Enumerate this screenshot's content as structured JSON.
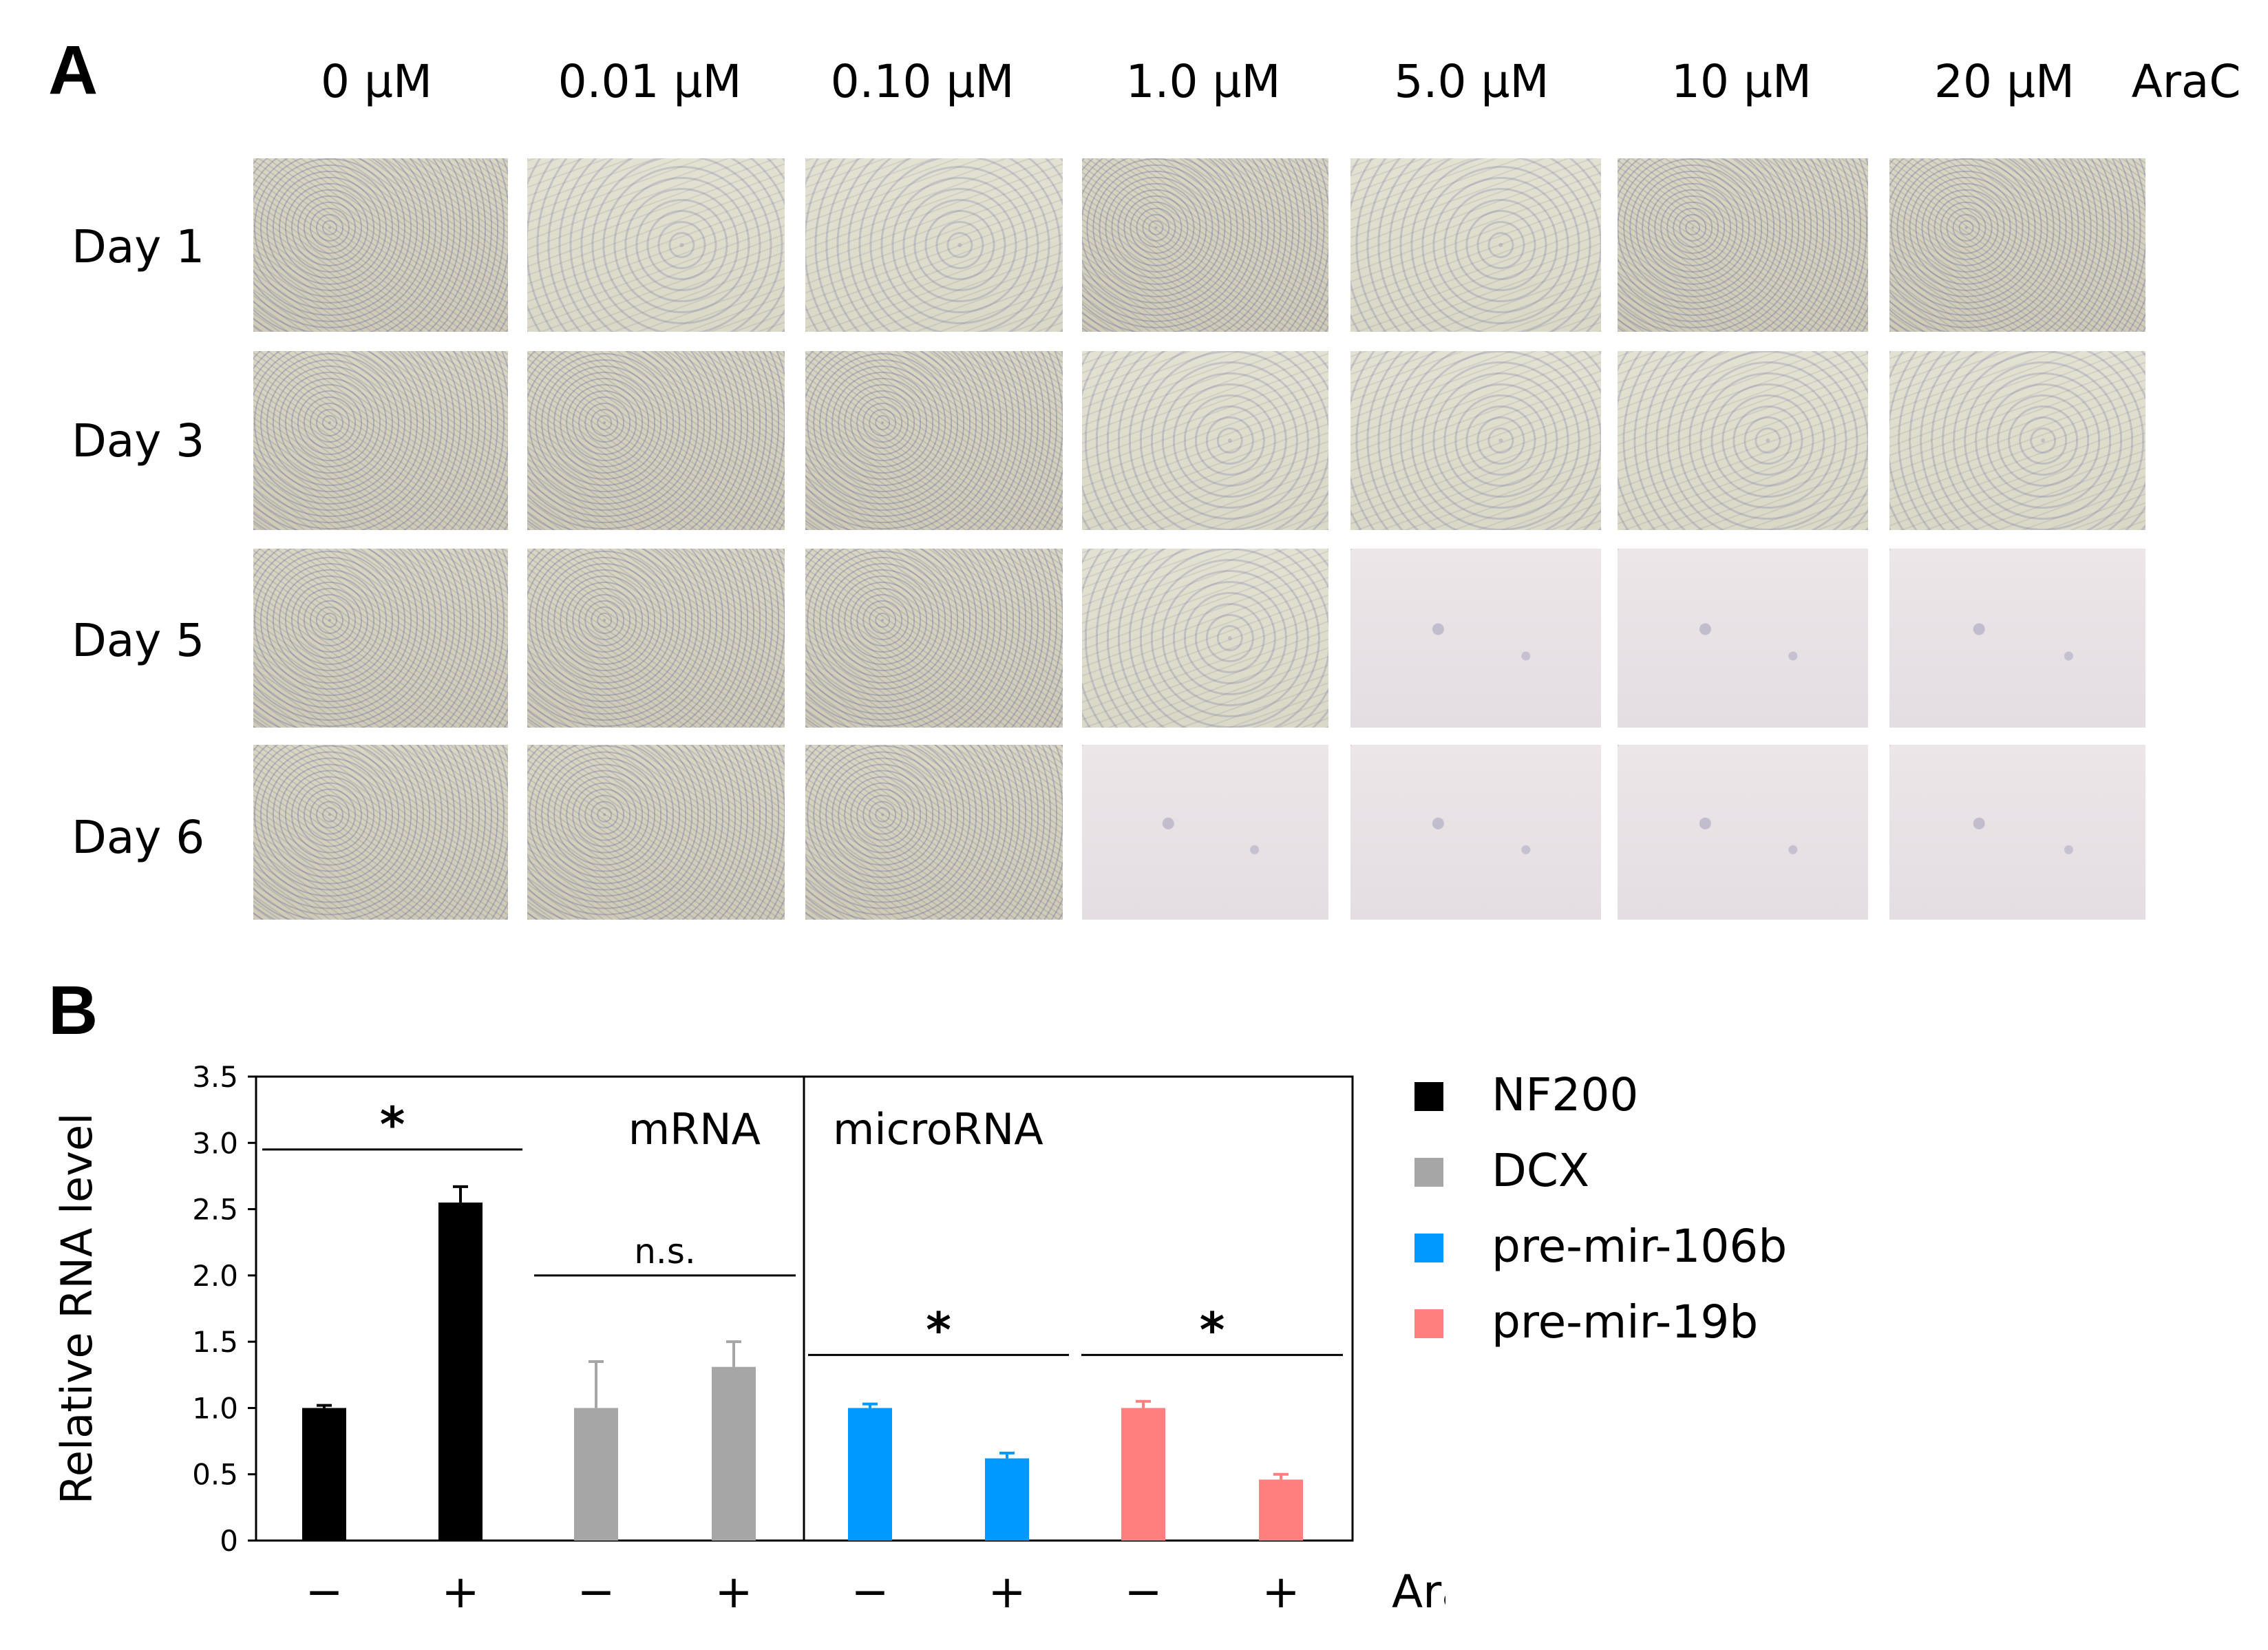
{
  "panel_a": {
    "letter": "A",
    "treatment_label": "AraC",
    "columns": [
      "0 µM",
      "0.01 µM",
      "0.10 µM",
      "1.0 µM",
      "5.0 µM",
      "10 µM",
      "20 µM"
    ],
    "rows": [
      "Day 1",
      "Day 3",
      "Day 5",
      "Day 6"
    ]
  },
  "panel_b": {
    "letter": "B",
    "legend": [
      {
        "name": "NF200",
        "color": "#000000"
      },
      {
        "name": "DCX",
        "color": "#a6a6a6"
      },
      {
        "name": "pre-mir-106b",
        "color": "#0099ff"
      },
      {
        "name": "pre-mir-19b",
        "color": "#ff7f7f"
      }
    ]
  },
  "chart_data": {
    "type": "bar",
    "title": "",
    "xlabel": "AraC",
    "ylabel": "Relative RNA level",
    "ylim": [
      0,
      3.5
    ],
    "yticks": [
      "0",
      "0.5",
      "1.0",
      "1.5",
      "2.0",
      "2.5",
      "3.0",
      "3.5"
    ],
    "grid": false,
    "legend_position": "right",
    "sections": [
      "mRNA",
      "microRNA"
    ],
    "categories": [
      "−",
      "+",
      "−",
      "+",
      "−",
      "+",
      "−",
      "+"
    ],
    "bars": [
      {
        "series": "NF200",
        "araC": "−",
        "value": 1.0,
        "error": 0.02,
        "color": "#000000"
      },
      {
        "series": "NF200",
        "araC": "+",
        "value": 2.55,
        "error": 0.12,
        "color": "#000000"
      },
      {
        "series": "DCX",
        "araC": "−",
        "value": 1.0,
        "error": 0.35,
        "color": "#a6a6a6"
      },
      {
        "series": "DCX",
        "araC": "+",
        "value": 1.31,
        "error": 0.19,
        "color": "#a6a6a6"
      },
      {
        "series": "pre-mir-106b",
        "araC": "−",
        "value": 1.0,
        "error": 0.03,
        "color": "#0099ff"
      },
      {
        "series": "pre-mir-106b",
        "araC": "+",
        "value": 0.62,
        "error": 0.04,
        "color": "#0099ff"
      },
      {
        "series": "pre-mir-19b",
        "araC": "−",
        "value": 1.0,
        "error": 0.05,
        "color": "#ff7f7f"
      },
      {
        "series": "pre-mir-19b",
        "araC": "+",
        "value": 0.46,
        "error": 0.04,
        "color": "#ff7f7f"
      }
    ],
    "significance": [
      {
        "from": 0,
        "to": 1,
        "label": "*",
        "y": 2.95
      },
      {
        "from": 2,
        "to": 3,
        "label": "n.s.",
        "y": 2.0
      },
      {
        "from": 4,
        "to": 5,
        "label": "*",
        "y": 1.4
      },
      {
        "from": 6,
        "to": 7,
        "label": "*",
        "y": 1.4
      }
    ]
  }
}
